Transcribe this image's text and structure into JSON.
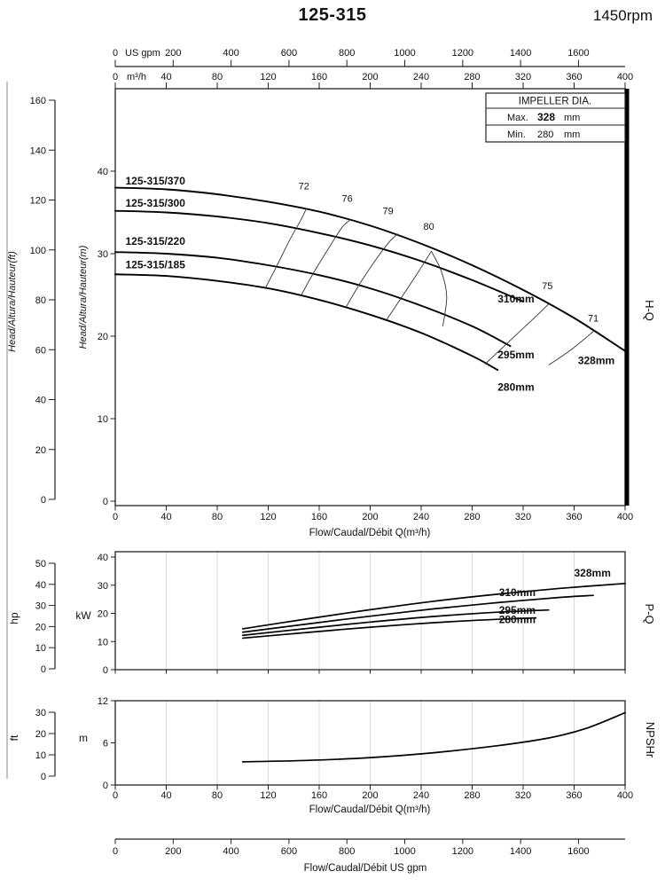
{
  "header": {
    "title": "125-315",
    "rpm": "1450rpm"
  },
  "impeller_box": {
    "title": "IMPELLER DIA.",
    "rows": [
      {
        "label": "Max.",
        "value": "328",
        "unit": "mm"
      },
      {
        "label": "Min.",
        "value": "280",
        "unit": "mm"
      }
    ]
  },
  "side_labels": {
    "hq": "H-Q",
    "pq": "P-Q",
    "npsh": "NPSHr"
  },
  "axes": {
    "gpm_top": {
      "unit_label": "US gpm",
      "ticks": [
        0,
        200,
        400,
        600,
        800,
        1000,
        1200,
        1400,
        1600
      ]
    },
    "m3h_top": {
      "unit_label": "m³/h",
      "ticks": [
        0,
        40,
        80,
        120,
        160,
        200,
        240,
        280,
        320,
        360,
        400
      ]
    },
    "head_ft": {
      "label": "Head/Altura/Hauteur(ft)",
      "ticks": [
        0,
        20,
        40,
        60,
        80,
        100,
        120,
        140,
        160
      ]
    },
    "head_m": {
      "label": "Head/Altura/Hauteur(m)",
      "ticks": [
        0,
        10,
        20,
        30,
        40
      ]
    },
    "flow_hq": {
      "label": "Flow/Caudal/Débit Q(m³/h)",
      "ticks": [
        0,
        40,
        80,
        120,
        160,
        200,
        240,
        280,
        320,
        360,
        400
      ]
    },
    "power_hp": {
      "label": "hp",
      "ticks": [
        0,
        10,
        20,
        30,
        40,
        50
      ]
    },
    "power_kw": {
      "label": "kW",
      "ticks": [
        0,
        10,
        20,
        30,
        40
      ]
    },
    "npsh_ft": {
      "label": "ft",
      "ticks": [
        0,
        10,
        20,
        30
      ]
    },
    "npsh_m": {
      "label": "m",
      "ticks": [
        0,
        6,
        12
      ]
    },
    "flow_npsh": {
      "label": "Flow/Caudal/Débit Q(m³/h)",
      "ticks": [
        0,
        40,
        80,
        120,
        160,
        200,
        240,
        280,
        320,
        360,
        400
      ]
    },
    "gpm_bottom": {
      "label": "Flow/Caudal/Débit US gpm",
      "ticks": [
        0,
        200,
        400,
        600,
        800,
        1000,
        1200,
        1400,
        1600
      ]
    }
  },
  "chart_data": [
    {
      "id": "hq",
      "type": "line",
      "name": "H-Q",
      "xlabel": "Flow/Caudal/Débit Q(m³/h)",
      "ylabel_m": "Head/Altura/Hauteur(m)",
      "ylabel_ft": "Head/Altura/Hauteur(ft)",
      "xlim": [
        0,
        400
      ],
      "ylim_m": [
        0,
        43
      ],
      "ylim_ft": [
        0,
        160
      ],
      "series": [
        {
          "name": "328mm",
          "model": "125-315/370",
          "model_label_at": [
            8,
            38.4
          ],
          "label_at": [
            363,
            16.6
          ],
          "points": [
            [
              0,
              38
            ],
            [
              40,
              37.8
            ],
            [
              80,
              37.2
            ],
            [
              120,
              36.3
            ],
            [
              160,
              35.1
            ],
            [
              200,
              33.4
            ],
            [
              240,
              31.2
            ],
            [
              280,
              28.6
            ],
            [
              320,
              25.6
            ],
            [
              360,
              22.2
            ],
            [
              400,
              18.2
            ]
          ]
        },
        {
          "name": "310mm",
          "model": "125-315/300",
          "model_label_at": [
            8,
            35.7
          ],
          "label_at": [
            300,
            24.1
          ],
          "points": [
            [
              0,
              35.2
            ],
            [
              40,
              35.0
            ],
            [
              80,
              34.5
            ],
            [
              120,
              33.7
            ],
            [
              160,
              32.5
            ],
            [
              200,
              31.0
            ],
            [
              240,
              29.1
            ],
            [
              280,
              26.8
            ],
            [
              320,
              24.2
            ]
          ]
        },
        {
          "name": "295mm",
          "model": "125-315/220",
          "model_label_at": [
            8,
            31.1
          ],
          "label_at": [
            300,
            17.3
          ],
          "points": [
            [
              0,
              30.2
            ],
            [
              40,
              30.0
            ],
            [
              80,
              29.5
            ],
            [
              120,
              28.6
            ],
            [
              160,
              27.4
            ],
            [
              200,
              25.8
            ],
            [
              240,
              23.7
            ],
            [
              280,
              21.2
            ],
            [
              310,
              18.8
            ]
          ]
        },
        {
          "name": "280mm",
          "model": "125-315/185",
          "model_label_at": [
            8,
            28.2
          ],
          "label_at": [
            300,
            13.4
          ],
          "points": [
            [
              0,
              27.5
            ],
            [
              40,
              27.3
            ],
            [
              80,
              26.7
            ],
            [
              120,
              25.8
            ],
            [
              160,
              24.4
            ],
            [
              200,
              22.6
            ],
            [
              240,
              20.4
            ],
            [
              280,
              17.6
            ],
            [
              300,
              15.9
            ]
          ]
        }
      ],
      "efficiency_contours": [
        {
          "label": "72",
          "label_at": [
            148,
            37.8
          ],
          "points": [
            [
              118,
              25.9
            ],
            [
              127,
              28.6
            ],
            [
              137,
              31.7
            ],
            [
              146,
              34.2
            ],
            [
              150,
              35.5
            ]
          ]
        },
        {
          "label": "76",
          "label_at": [
            182,
            36.3
          ],
          "points": [
            [
              146,
              25.0
            ],
            [
              156,
              27.8
            ],
            [
              168,
              30.8
            ],
            [
              178,
              33.2
            ],
            [
              185,
              34.2
            ]
          ]
        },
        {
          "label": "79",
          "label_at": [
            214,
            34.8
          ],
          "points": [
            [
              181,
              23.5
            ],
            [
              192,
              26.4
            ],
            [
              205,
              29.4
            ],
            [
              216,
              31.6
            ],
            [
              222,
              32.4
            ]
          ]
        },
        {
          "label": "80",
          "label_at": [
            246,
            32.9
          ],
          "points": [
            [
              213,
              22.0
            ],
            [
              225,
              24.8
            ],
            [
              237,
              27.6
            ],
            [
              248,
              30.3
            ]
          ]
        },
        {
          "label": "",
          "label_at": null,
          "points": [
            [
              248,
              30.3
            ],
            [
              256,
              27.8
            ],
            [
              260,
              24.8
            ],
            [
              257,
              21.2
            ]
          ]
        },
        {
          "label": "75",
          "label_at": [
            339,
            25.7
          ],
          "points": [
            [
              290,
              16.6
            ],
            [
              312,
              19.8
            ],
            [
              330,
              22.4
            ],
            [
              340,
              23.9
            ]
          ]
        },
        {
          "label": "71",
          "label_at": [
            375,
            21.8
          ],
          "points": [
            [
              340,
              16.5
            ],
            [
              358,
              18.4
            ],
            [
              376,
              20.7
            ]
          ]
        }
      ]
    },
    {
      "id": "pq",
      "type": "line",
      "name": "P-Q",
      "xlim": [
        0,
        400
      ],
      "ylim_kw": [
        0,
        40
      ],
      "ylim_hp": [
        0,
        50
      ],
      "series": [
        {
          "name": "328mm",
          "label_at": [
            360,
            33.0
          ],
          "points": [
            [
              100,
              14.5
            ],
            [
              150,
              18.0
            ],
            [
              200,
              21.3
            ],
            [
              250,
              24.3
            ],
            [
              300,
              26.8
            ],
            [
              350,
              28.9
            ],
            [
              400,
              30.6
            ]
          ]
        },
        {
          "name": "310mm",
          "label_at": [
            301,
            26.2
          ],
          "points": [
            [
              100,
              13.3
            ],
            [
              150,
              16.2
            ],
            [
              200,
              19.0
            ],
            [
              250,
              21.6
            ],
            [
              300,
              23.8
            ],
            [
              350,
              25.7
            ],
            [
              375,
              26.4
            ]
          ]
        },
        {
          "name": "295mm",
          "label_at": [
            301,
            19.9
          ],
          "points": [
            [
              100,
              12.2
            ],
            [
              150,
              14.6
            ],
            [
              200,
              16.9
            ],
            [
              250,
              18.9
            ],
            [
              300,
              20.4
            ],
            [
              340,
              21.2
            ]
          ]
        },
        {
          "name": "280mm",
          "label_at": [
            301,
            16.6
          ],
          "points": [
            [
              100,
              11.2
            ],
            [
              150,
              13.2
            ],
            [
              200,
              15.1
            ],
            [
              250,
              16.7
            ],
            [
              300,
              17.9
            ],
            [
              330,
              18.4
            ]
          ]
        }
      ]
    },
    {
      "id": "npsh",
      "type": "line",
      "name": "NPSHr",
      "xlim": [
        0,
        400
      ],
      "ylim_m": [
        0,
        12
      ],
      "ylim_ft": [
        0,
        30
      ],
      "series": [
        {
          "name": "NPSHr",
          "label_at": null,
          "points": [
            [
              100,
              3.3
            ],
            [
              150,
              3.5
            ],
            [
              200,
              3.9
            ],
            [
              250,
              4.6
            ],
            [
              300,
              5.6
            ],
            [
              340,
              6.7
            ],
            [
              370,
              8.1
            ],
            [
              400,
              10.3
            ]
          ]
        }
      ]
    }
  ]
}
